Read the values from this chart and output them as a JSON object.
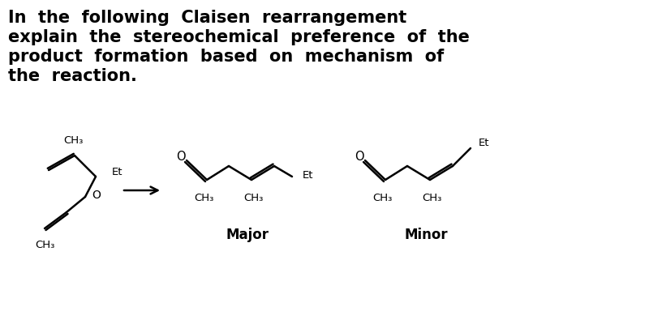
{
  "background_color": "#ffffff",
  "text_color": "#000000",
  "title_lines": [
    "In  the  following  Claisen  rearrangement",
    "explain  the  stereochemical  preference  of  the",
    "product  formation  based  on  mechanism  of",
    "the  reaction."
  ],
  "title_fontsize": 15.0,
  "major_label": "Major",
  "minor_label": "Minor"
}
